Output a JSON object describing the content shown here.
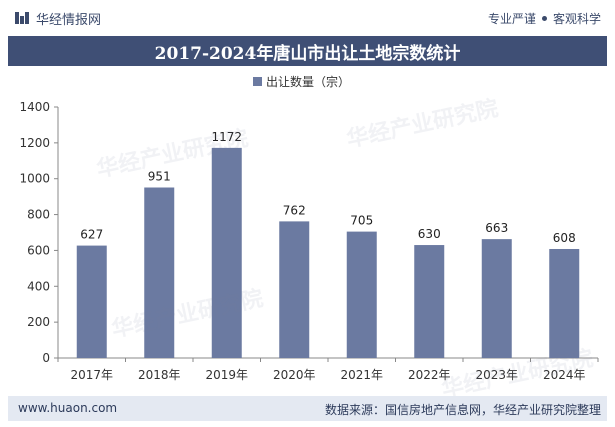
{
  "header": {
    "brand_name": "华经情报网",
    "slogan_left": "专业严谨",
    "slogan_right": "客观科学"
  },
  "chart_data": {
    "type": "bar",
    "title": "2017-2024年唐山市出让土地宗数统计",
    "legend": "出让数量（宗）",
    "categories": [
      "2017年",
      "2018年",
      "2019年",
      "2020年",
      "2021年",
      "2022年",
      "2023年",
      "2024年"
    ],
    "values": [
      627,
      951,
      1172,
      762,
      705,
      630,
      663,
      608
    ],
    "ylim": [
      0,
      1400
    ],
    "yticks": [
      0,
      200,
      400,
      600,
      800,
      1000,
      1200,
      1400
    ],
    "xlabel": "",
    "ylabel": "",
    "bar_color": "#6b7aa1"
  },
  "watermarks": [
    "华经产业研究院",
    "华经产业研究院",
    "华经产业研究院",
    "华经产业研究院"
  ],
  "footer": {
    "website": "www.huaon.com",
    "source": "数据来源：国信房地产信息网，华经产业研究院整理"
  }
}
